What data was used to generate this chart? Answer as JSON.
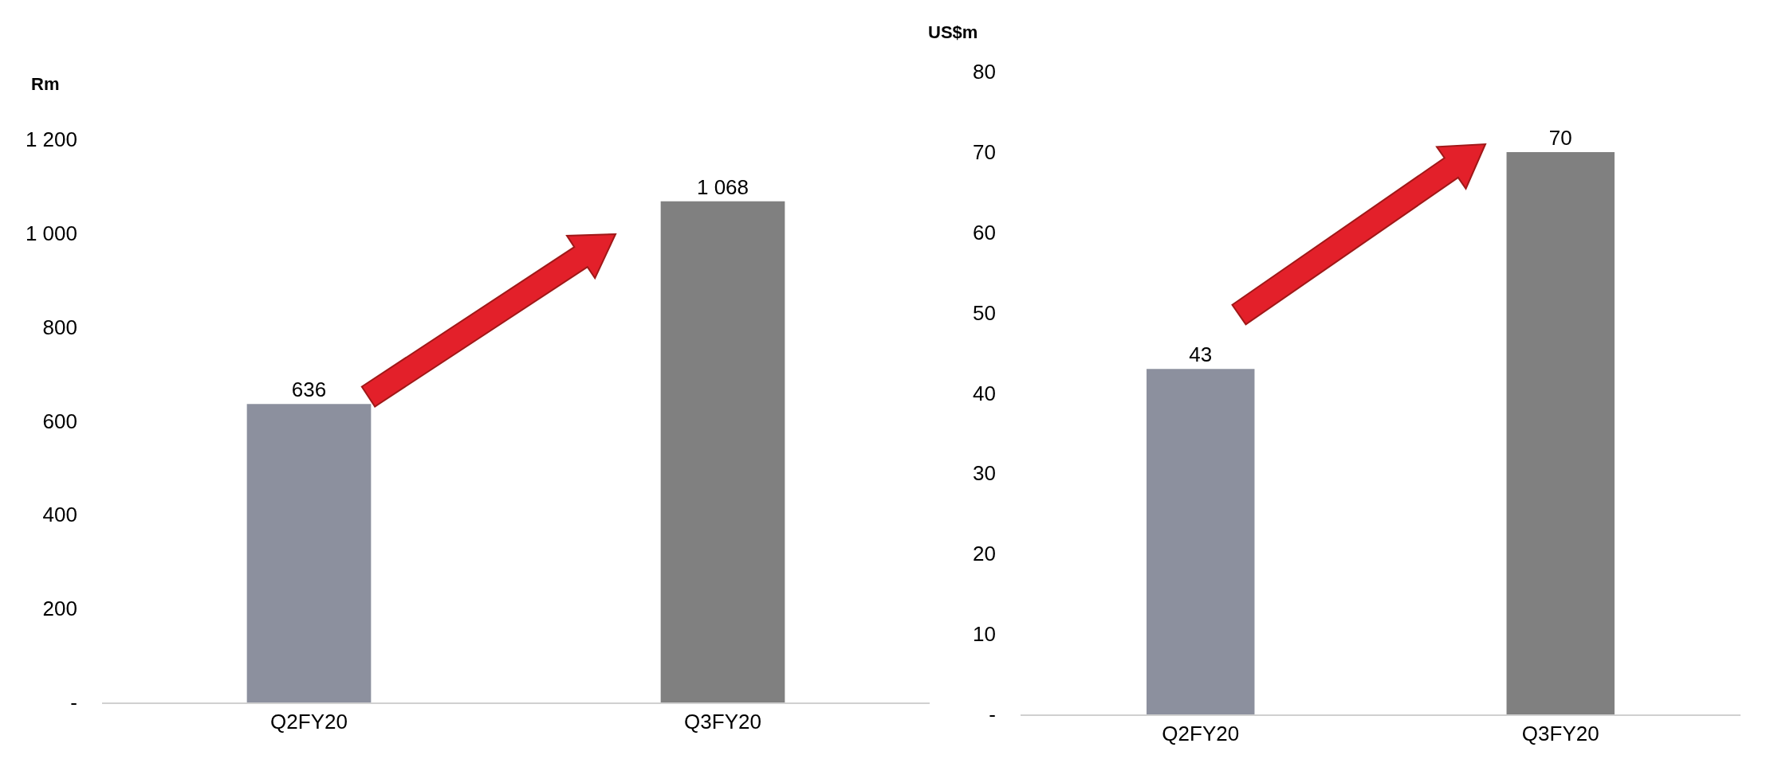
{
  "chart_data": [
    {
      "type": "bar",
      "ylabel": "Rm",
      "categories": [
        "Q2FY20",
        "Q3FY20"
      ],
      "colors": [
        "#8c909e",
        "#808080"
      ],
      "values": [
        636,
        1068
      ],
      "value_labels": [
        "636",
        "1 068"
      ],
      "ylim": [
        0,
        1200
      ],
      "yticks": [
        {
          "value": 0,
          "label": "-"
        },
        200,
        400,
        600,
        800,
        {
          "value": 1000,
          "label": "1 000"
        },
        {
          "value": 1200,
          "label": "1 200"
        }
      ],
      "grid": false
    },
    {
      "type": "bar",
      "ylabel": "US$m",
      "categories": [
        "Q2FY20",
        "Q3FY20"
      ],
      "colors": [
        "#8c909e",
        "#808080"
      ],
      "values": [
        43,
        70
      ],
      "value_labels": [
        "43",
        "70"
      ],
      "ylim": [
        0,
        80
      ],
      "yticks": [
        {
          "value": 0,
          "label": "-"
        },
        10,
        20,
        30,
        40,
        50,
        60,
        70,
        80
      ],
      "grid": false
    }
  ]
}
